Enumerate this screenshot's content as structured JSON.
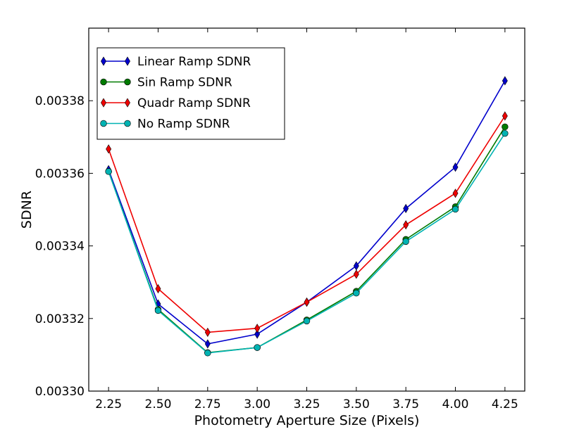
{
  "chart_data": {
    "type": "line",
    "title": "",
    "xlabel": "Photometry Aperture Size (Pixels)",
    "ylabel": "SDNR",
    "xlim": [
      2.15,
      4.35
    ],
    "ylim": [
      0.0033,
      0.0034
    ],
    "x_ticks": [
      "2.25",
      "2.50",
      "2.75",
      "3.00",
      "3.25",
      "3.50",
      "3.75",
      "4.00",
      "4.25"
    ],
    "y_ticks": [
      "0.00330",
      "0.00332",
      "0.00334",
      "0.00336",
      "0.00338"
    ],
    "x": [
      2.25,
      2.5,
      2.75,
      3.0,
      3.25,
      3.5,
      3.75,
      4.0,
      4.25
    ],
    "grid": false,
    "legend_position": "top-left",
    "series": [
      {
        "name": "Linear Ramp SDNR",
        "color": "#0000cc",
        "marker": "diamond",
        "values": [
          0.003361,
          0.003324,
          0.003313,
          0.0033157,
          0.0033245,
          0.0033345,
          0.0033503,
          0.0033617,
          0.0033855
        ]
      },
      {
        "name": "Sin Ramp SDNR",
        "color": "#007a00",
        "marker": "circle",
        "values": [
          0.0033605,
          0.0033225,
          0.0033106,
          0.003312,
          0.0033196,
          0.0033275,
          0.0033418,
          0.0033508,
          0.0033728
        ]
      },
      {
        "name": "Quadr Ramp SDNR",
        "color": "#ee0000",
        "marker": "diamond",
        "values": [
          0.0033667,
          0.0033282,
          0.0033162,
          0.0033173,
          0.0033245,
          0.0033322,
          0.0033458,
          0.0033545,
          0.0033758
        ]
      },
      {
        "name": "No Ramp SDNR",
        "color": "#00b3b3",
        "marker": "circle",
        "values": [
          0.0033605,
          0.0033222,
          0.0033105,
          0.003312,
          0.0033193,
          0.003327,
          0.0033412,
          0.0033501,
          0.003371
        ]
      }
    ]
  }
}
